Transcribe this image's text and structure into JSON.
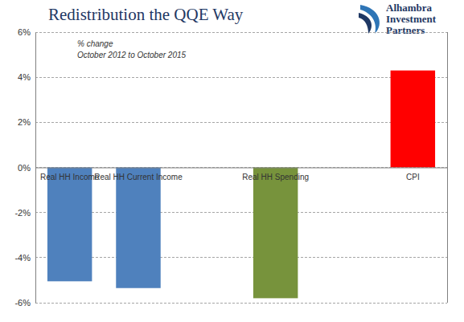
{
  "chart_data": {
    "type": "bar",
    "title": "Redistribution the QQE Way",
    "subtitle": [
      "% change",
      "October 2012 to October 2015"
    ],
    "logo_text": [
      "Alhambra",
      "Investment",
      "Partners"
    ],
    "categories": [
      "Real HH Income",
      "Real HH Current Income",
      null,
      "Real HH Spending",
      null,
      "CPI"
    ],
    "values": [
      -5.05,
      -5.35,
      null,
      -5.8,
      null,
      4.3
    ],
    "colors": [
      "#4f81bd",
      "#4f81bd",
      null,
      "#77933c",
      null,
      "#ff0000"
    ],
    "ylim": [
      -6,
      6
    ],
    "yticks": [
      {
        "value": -6,
        "label": "-6%"
      },
      {
        "value": -4,
        "label": "-4%"
      },
      {
        "value": -2,
        "label": "-2%"
      },
      {
        "value": 0,
        "label": "0%"
      },
      {
        "value": 2,
        "label": "2%"
      },
      {
        "value": 4,
        "label": "4%"
      },
      {
        "value": 6,
        "label": "6%"
      }
    ],
    "grid": true
  }
}
